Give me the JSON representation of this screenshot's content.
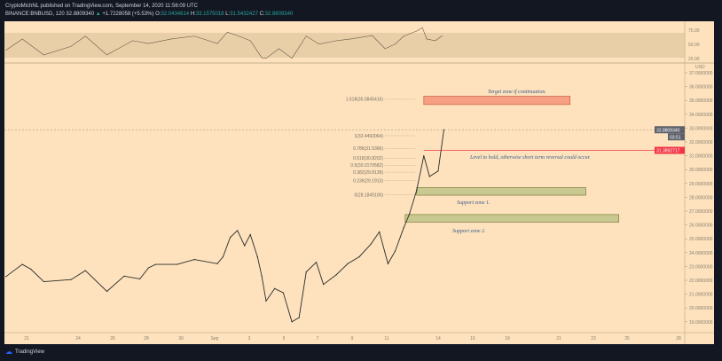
{
  "header": {
    "published": "CryptoMichNL published on TradingView.com, September 14, 2020 11:56:09 UTC",
    "symbol": "BINANCE:BNBUSD, 120",
    "last": "32.8809340",
    "change": "+1.7228058 (+5.53%)",
    "o_label": "O:",
    "o": "32.0434614",
    "h_label": "H:",
    "h": "33.1575018",
    "l_label": "L:",
    "l": "31.5432427",
    "c_label": "C:",
    "c": "32.8809340"
  },
  "footer": {
    "brand": "TradingView"
  },
  "colors": {
    "background": "#fde2bd",
    "frame": "#131722",
    "price_line": "#f23645",
    "candles": "#2a2a2a",
    "target_zone": "#f7a083",
    "support_zone": "#c8c890"
  },
  "price_axis": {
    "currency": "USD",
    "ticks": [
      "37.0000000",
      "36.0000000",
      "35.0000000",
      "34.0000000",
      "33.0000000",
      "32.0000000",
      "31.0000000",
      "30.0000000",
      "29.0000000",
      "28.0000000",
      "27.0000000",
      "26.0000000",
      "25.0000000",
      "24.0000000",
      "23.0000000",
      "22.0000000",
      "21.0000000",
      "20.0000000",
      "19.0000000"
    ],
    "current_price": "32.8809340",
    "countdown": "03:51",
    "level_price": "31.3892717"
  },
  "rsi_axis": {
    "ticks": [
      "75.00",
      "50.00",
      "25.00"
    ]
  },
  "time_axis": {
    "ticks": [
      "21",
      "24",
      "26",
      "28",
      "30",
      "Sep",
      "3",
      "5",
      "7",
      "9",
      "11",
      "14",
      "16",
      "18",
      "21",
      "23",
      "25",
      "28"
    ]
  },
  "fib": {
    "labels": [
      "1.618(35.0845416)",
      "1(32.4492064)",
      "0.786(31.5366)",
      "0.618(30.8202)",
      "0.5(30.3170582)",
      "0.382(29.8139)",
      "0.236(29.1913)",
      "0(28.1849100)"
    ]
  },
  "annotations": {
    "target": "Target zone if continuation.",
    "level": "Level to hold, otherwise short term reversal could occur.",
    "support1": "Support zone 1.",
    "support2": "Support zone 2."
  },
  "chart_data": {
    "type": "line",
    "ylim": [
      18.5,
      37.5
    ],
    "price": [
      [
        "2020-08-19T19:00",
        22.26
      ],
      [
        "2020-08-20T18:00",
        23.15
      ],
      [
        "2020-08-21T06:00",
        22.8
      ],
      [
        "2020-08-22T00:00",
        21.9
      ],
      [
        "2020-08-23T14:00",
        22.05
      ],
      [
        "2020-08-24T10:00",
        22.7
      ],
      [
        "2020-08-25T16:00",
        21.2
      ],
      [
        "2020-08-26T16:00",
        22.3
      ],
      [
        "2020-08-27T14:00",
        22.1
      ],
      [
        "2020-08-28T02:00",
        22.9
      ],
      [
        "2020-08-28T12:00",
        23.15
      ],
      [
        "2020-08-29T18:00",
        23.15
      ],
      [
        "2020-08-30T18:00",
        23.5
      ],
      [
        "2020-09-01T02:00",
        23.2
      ],
      [
        "2020-09-01T10:00",
        23.7
      ],
      [
        "2020-09-01T20:00",
        25.1
      ],
      [
        "2020-09-02T06:00",
        25.6
      ],
      [
        "2020-09-02T16:00",
        24.5
      ],
      [
        "2020-09-03T00:00",
        25.3
      ],
      [
        "2020-09-03T10:00",
        23.7
      ],
      [
        "2020-09-03T16:00",
        22.3
      ],
      [
        "2020-09-03T22:00",
        20.5
      ],
      [
        "2020-09-04T10:00",
        21.4
      ],
      [
        "2020-09-04T22:00",
        21.1
      ],
      [
        "2020-09-05T10:00",
        19.0
      ],
      [
        "2020-09-05T20:00",
        19.3
      ],
      [
        "2020-09-06T06:00",
        22.6
      ],
      [
        "2020-09-06T20:00",
        23.3
      ],
      [
        "2020-09-07T06:00",
        21.7
      ],
      [
        "2020-09-08T00:00",
        22.4
      ],
      [
        "2020-09-08T16:00",
        23.2
      ],
      [
        "2020-09-09T08:00",
        23.7
      ],
      [
        "2020-09-10T00:00",
        24.6
      ],
      [
        "2020-09-10T12:00",
        25.5
      ],
      [
        "2020-09-11T00:00",
        23.2
      ],
      [
        "2020-09-11T10:00",
        24.1
      ],
      [
        "2020-09-11T22:00",
        25.8
      ],
      [
        "2020-09-12T06:00",
        26.8
      ],
      [
        "2020-09-12T16:00",
        28.5
      ],
      [
        "2020-09-13T02:00",
        31.0
      ],
      [
        "2020-09-13T10:00",
        29.5
      ],
      [
        "2020-09-13T22:00",
        29.9
      ],
      [
        "2020-09-14T06:00",
        32.88
      ]
    ],
    "rsi": [
      [
        "2020-08-19T19:00",
        41
      ],
      [
        "2020-08-20T18:00",
        61
      ],
      [
        "2020-08-22T00:00",
        33
      ],
      [
        "2020-08-23T14:00",
        48
      ],
      [
        "2020-08-24T10:00",
        66
      ],
      [
        "2020-08-25T16:00",
        33
      ],
      [
        "2020-08-27T04:00",
        58
      ],
      [
        "2020-08-28T02:00",
        53
      ],
      [
        "2020-08-29T10:00",
        61
      ],
      [
        "2020-08-30T18:00",
        66
      ],
      [
        "2020-09-01T02:00",
        53
      ],
      [
        "2020-09-01T16:00",
        73
      ],
      [
        "2020-09-02T06:00",
        67
      ],
      [
        "2020-09-03T00:00",
        58
      ],
      [
        "2020-09-03T16:00",
        28
      ],
      [
        "2020-09-03T22:00",
        27
      ],
      [
        "2020-09-04T16:00",
        44
      ],
      [
        "2020-09-05T10:00",
        27
      ],
      [
        "2020-09-06T06:00",
        66
      ],
      [
        "2020-09-07T00:00",
        52
      ],
      [
        "2020-09-08T00:00",
        58
      ],
      [
        "2020-09-08T20:00",
        61
      ],
      [
        "2020-09-10T02:00",
        67
      ],
      [
        "2020-09-10T20:00",
        44
      ],
      [
        "2020-09-11T10:00",
        52
      ],
      [
        "2020-09-11T22:00",
        66
      ],
      [
        "2020-09-12T16:00",
        75
      ],
      [
        "2020-09-13T00:00",
        81
      ],
      [
        "2020-09-13T06:00",
        61
      ],
      [
        "2020-09-13T18:00",
        58
      ],
      [
        "2020-09-14T04:00",
        67
      ]
    ],
    "rsi_bands": [
      70,
      30
    ],
    "zones": {
      "target": {
        "from": "2020-09-13T02:00",
        "to": "2020-09-21T14:00",
        "top": 35.3,
        "bottom": 34.7
      },
      "support1": {
        "from": "2020-09-12T16:00",
        "to": "2020-09-22T12:00",
        "top": 28.7,
        "bottom": 28.15
      },
      "support2": {
        "from": "2020-09-12T00:00",
        "to": "2020-09-24T10:00",
        "top": 26.75,
        "bottom": 26.2
      }
    },
    "level": 31.3892717,
    "fib_levels": [
      35.0845416,
      32.4492064,
      31.5366,
      30.8202,
      30.3170582,
      29.8139,
      29.1913,
      28.18491
    ]
  }
}
